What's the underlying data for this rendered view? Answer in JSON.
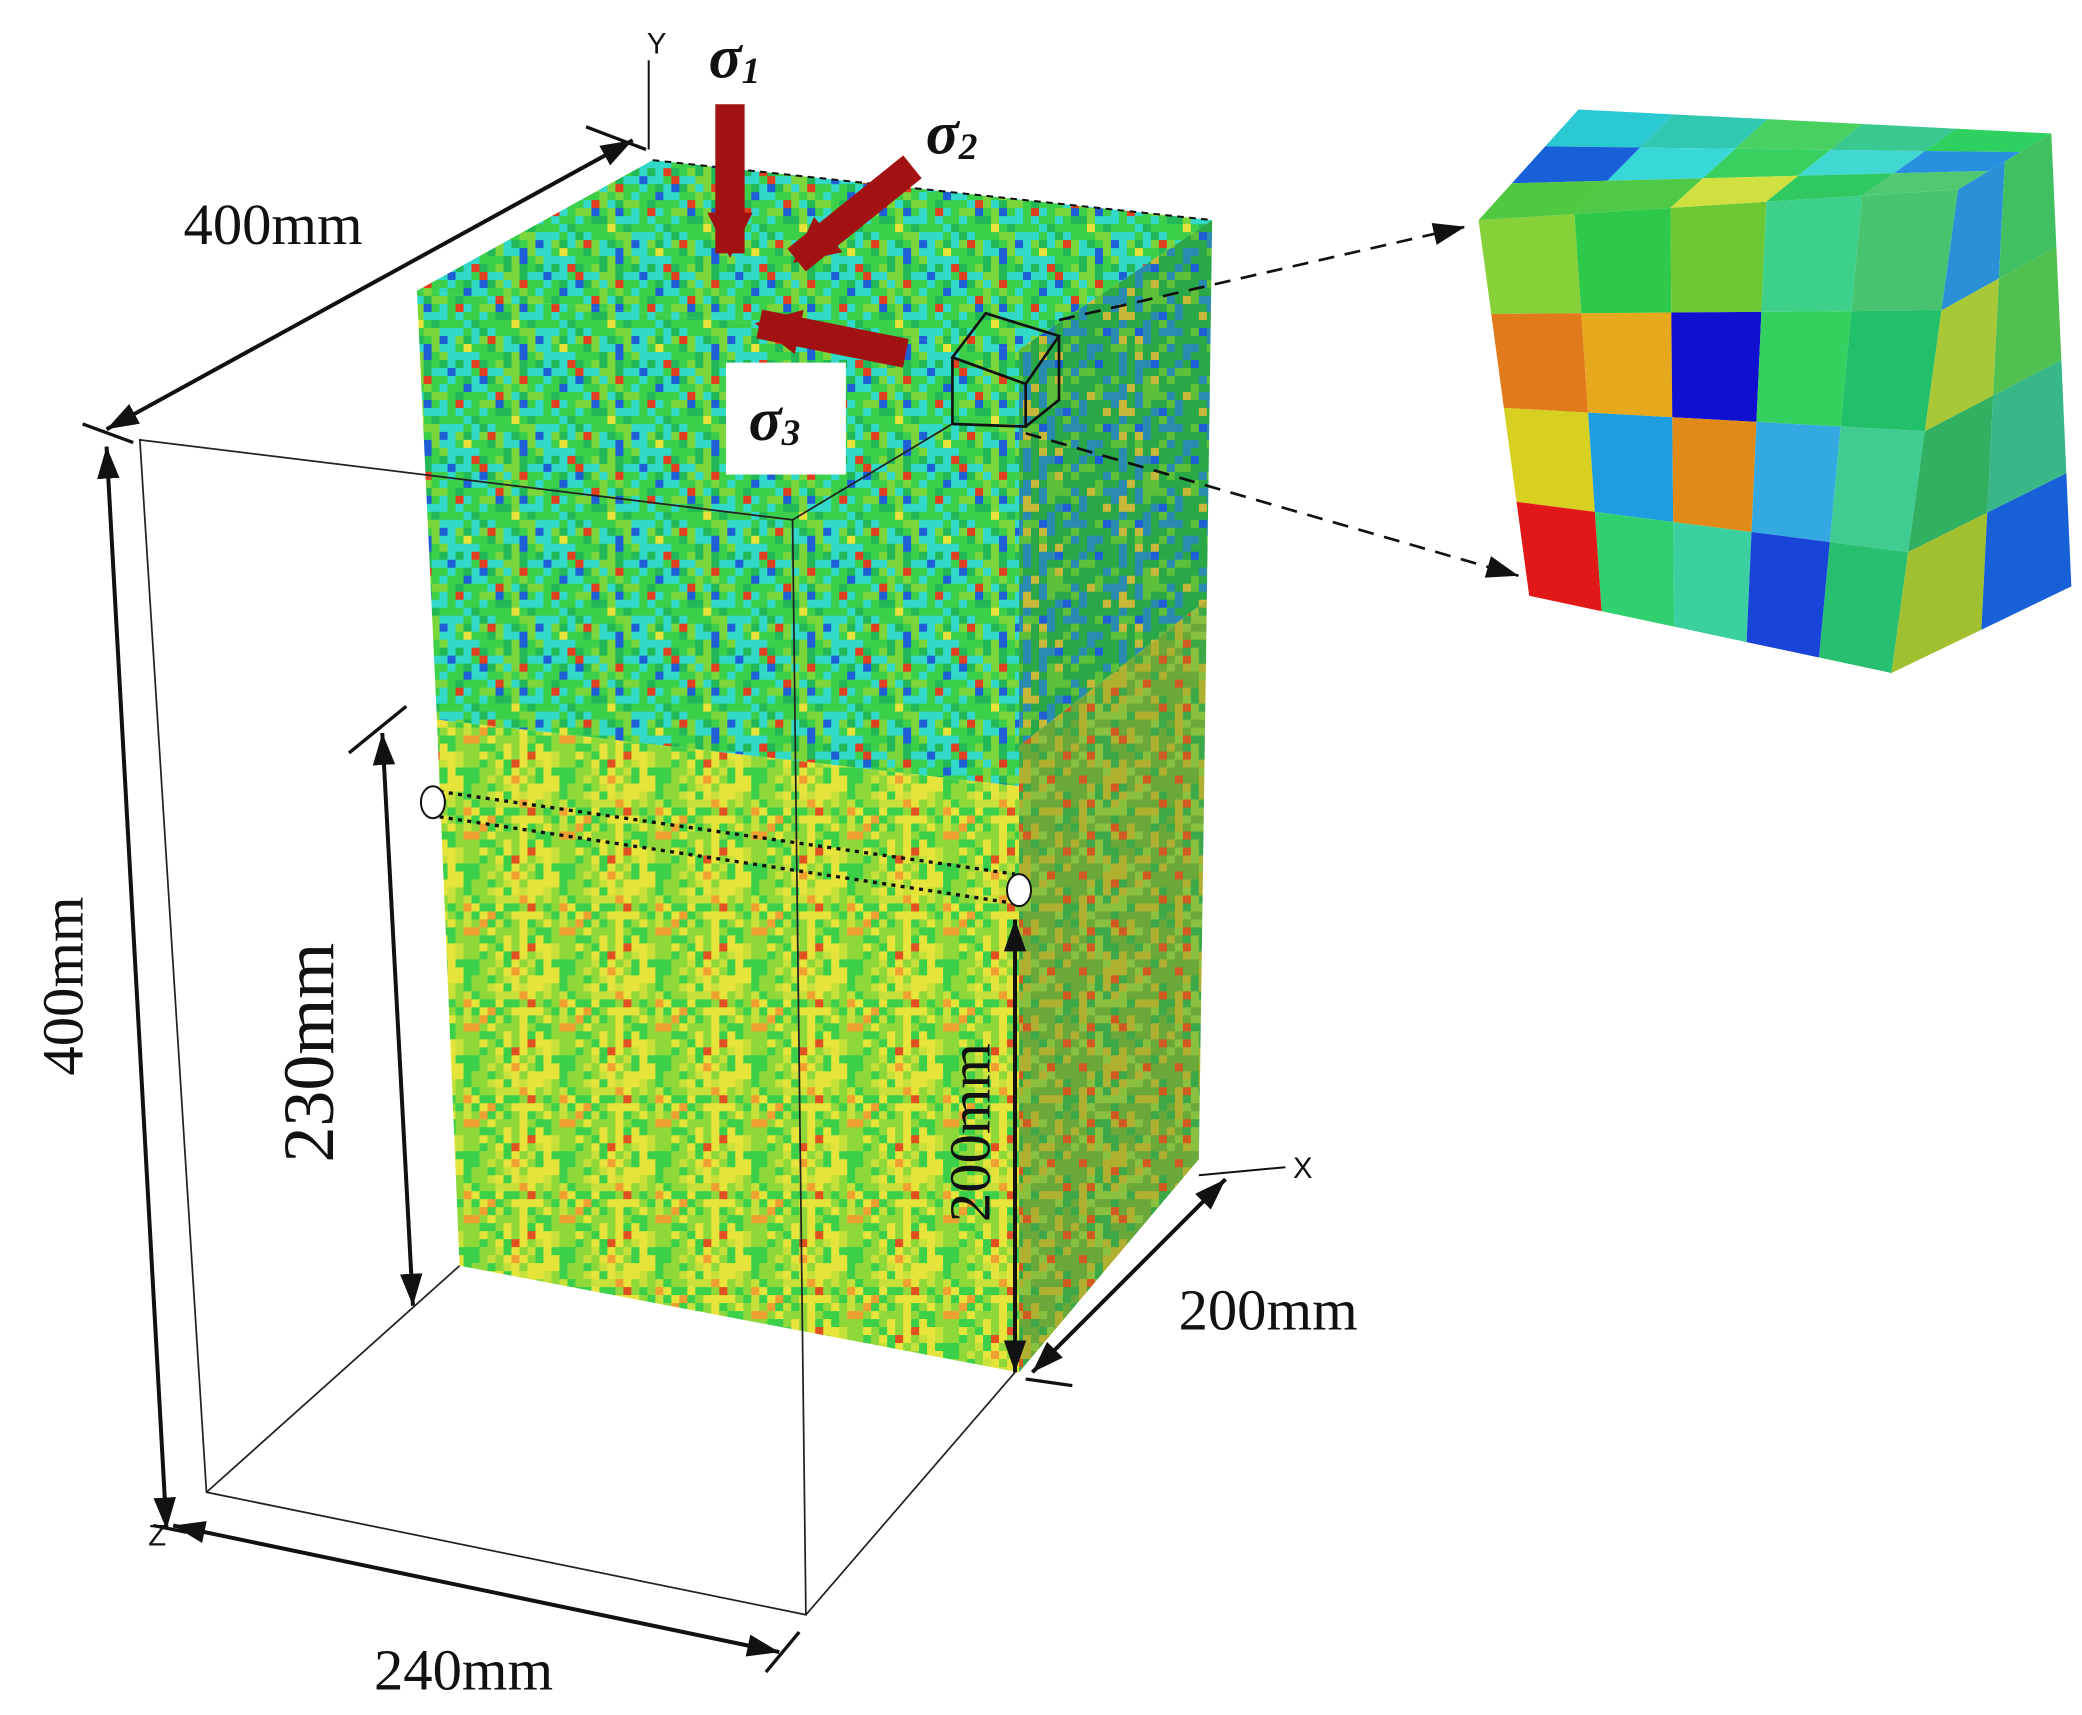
{
  "axes": {
    "x": "X",
    "y": "Y",
    "z": "Z"
  },
  "stresses": [
    {
      "symbol": "σ",
      "subscript": "1"
    },
    {
      "symbol": "σ",
      "subscript": "2"
    },
    {
      "symbol": "σ",
      "subscript": "3"
    }
  ],
  "dimensions": {
    "top_length": "400mm",
    "height": "400mm",
    "borehole_left": "230mm",
    "borehole_right": "200mm",
    "depth": "200mm",
    "width": "240mm"
  }
}
